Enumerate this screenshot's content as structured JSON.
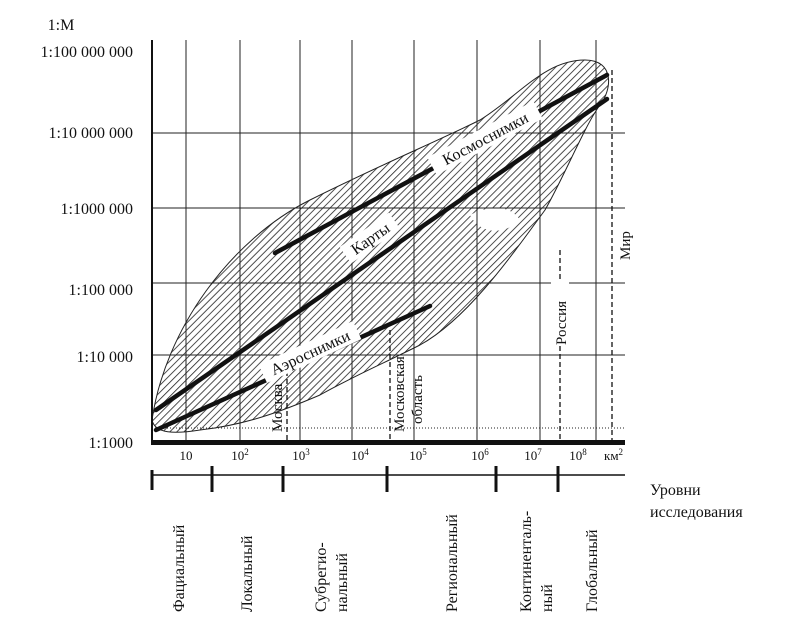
{
  "y_axis": {
    "header": "1:М",
    "ticks": [
      "1:100 000 000",
      "1:10 000 000",
      "1:1000 000",
      "1:100 000",
      "1:10 000",
      "1:1000"
    ]
  },
  "x_axis": {
    "ticks": [
      "10",
      "10",
      "10",
      "10",
      "10",
      "10",
      "10",
      "10"
    ],
    "exponents": [
      "",
      "2",
      "3",
      "4",
      "5",
      "6",
      "7",
      "8"
    ],
    "unit": "км",
    "unit_exp": "2"
  },
  "curves": {
    "space": "Космоснимки",
    "maps": "Карты",
    "aerial": "Аэроснимки"
  },
  "regions": {
    "moscow": "Москва",
    "moscow_oblast_1": "Московская",
    "moscow_oblast_2": "область",
    "russia": "Россия",
    "world": "Мир"
  },
  "levels_title_1": "Уровни",
  "levels_title_2": "исследования",
  "levels": [
    {
      "line1": "Фациальный",
      "line2": ""
    },
    {
      "line1": "Локальный",
      "line2": ""
    },
    {
      "line1": "Субрегио-",
      "line2": "нальный"
    },
    {
      "line1": "Региональный",
      "line2": ""
    },
    {
      "line1": "Континенталь-",
      "line2": "ный"
    },
    {
      "line1": "Глобальный",
      "line2": ""
    }
  ]
}
